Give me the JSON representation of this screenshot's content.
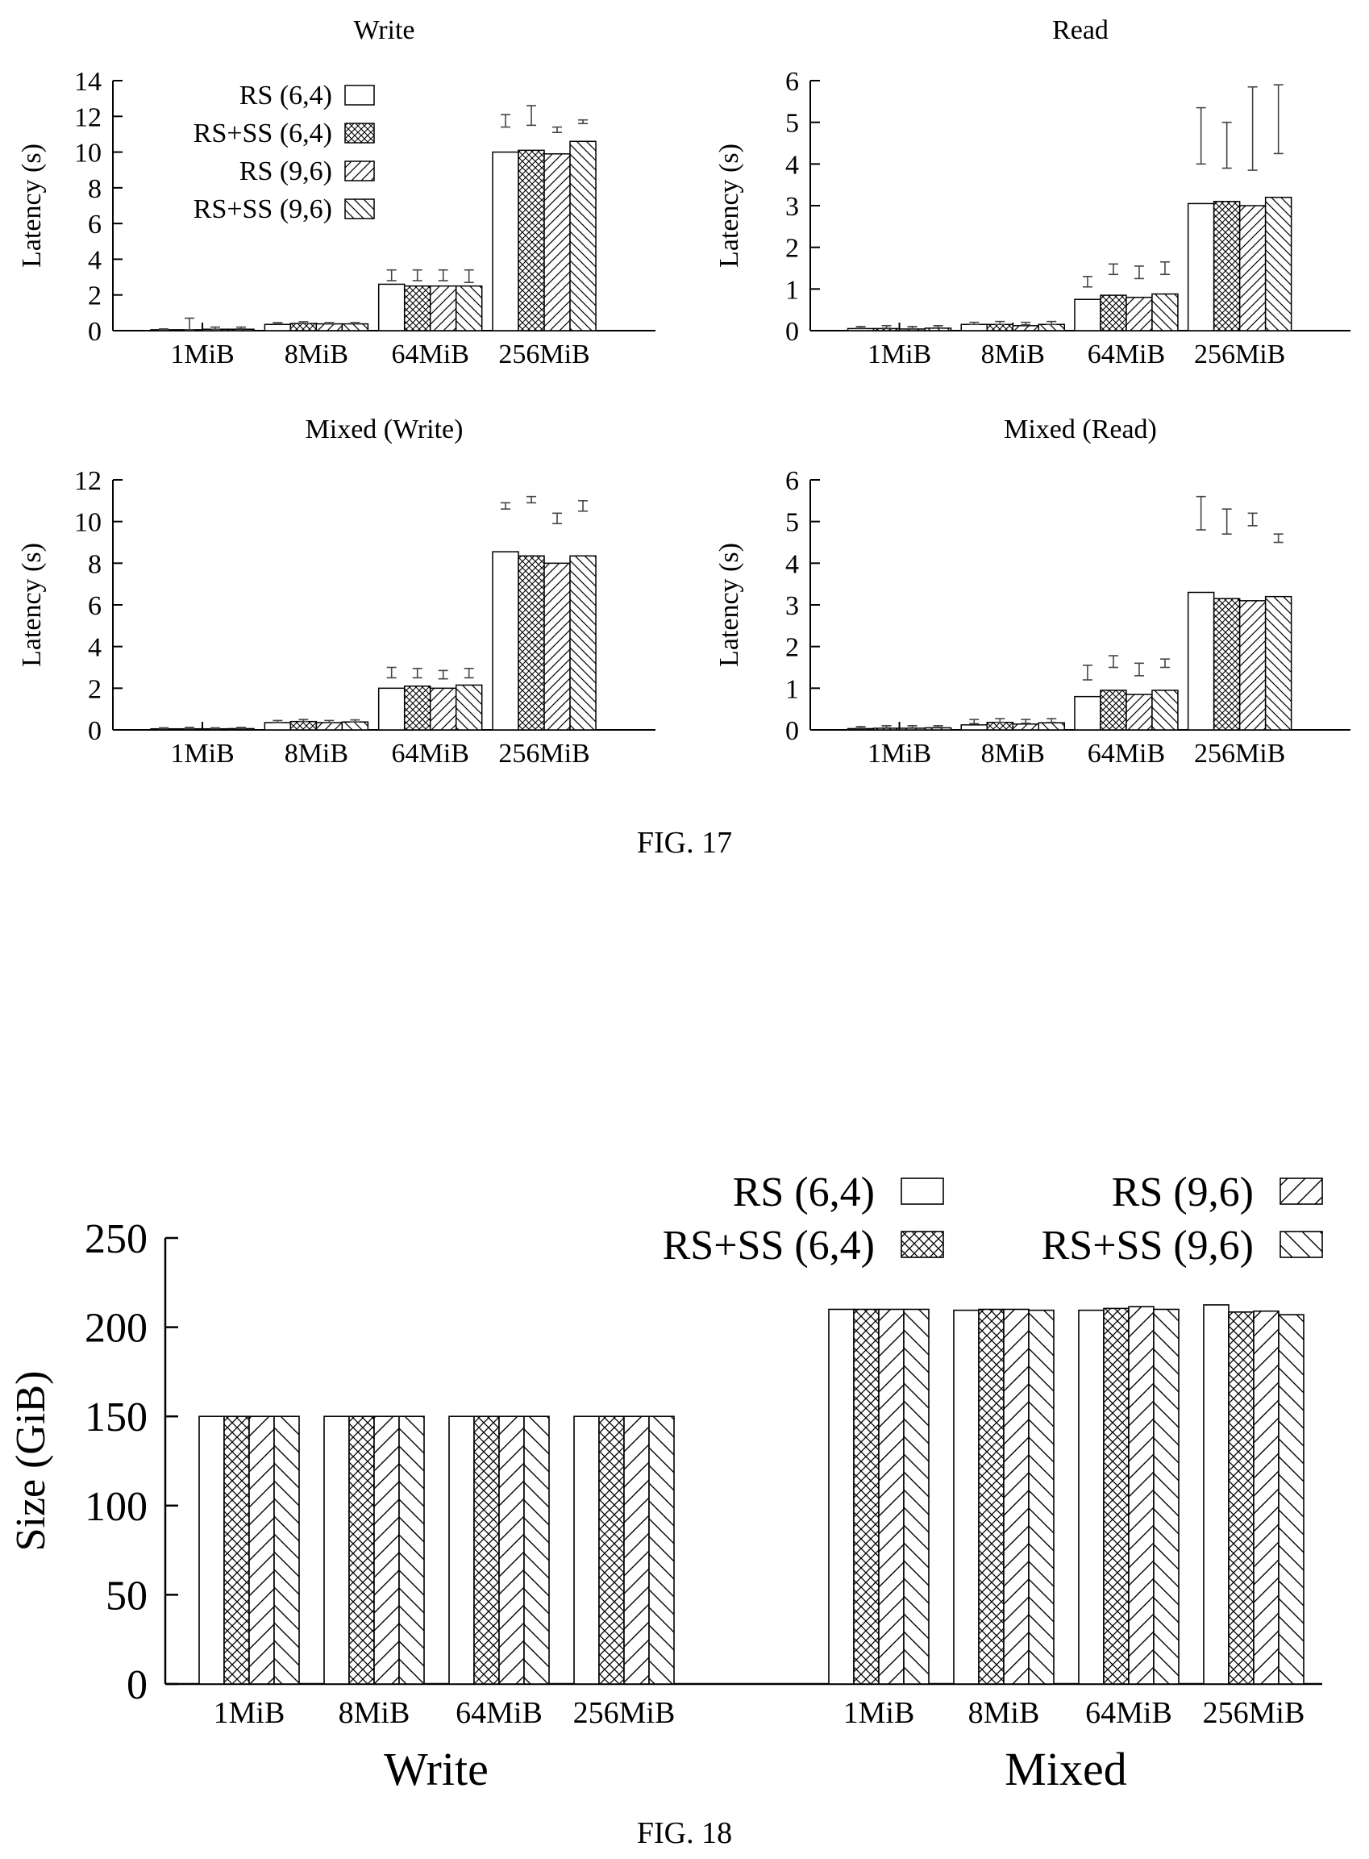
{
  "colors": {
    "ink": "#000000",
    "paper": "#ffffff",
    "errorbar": "#444444"
  },
  "series_names": [
    "RS (6,4)",
    "RS+SS (6,4)",
    "RS (9,6)",
    "RS+SS (9,6)"
  ],
  "series_patterns": [
    "none",
    "crosshatch",
    "diag-forward",
    "diag-back"
  ],
  "fig17": {
    "caption": "FIG. 17",
    "ylabel": "Latency (s)"
  },
  "fig18": {
    "caption": "FIG. 18",
    "ylabel": "Size (GiB)",
    "group_labels": [
      "Write",
      "Mixed"
    ]
  },
  "chart_data": [
    {
      "type": "bar",
      "title": "Write",
      "xlabel": "",
      "ylabel": "Latency (s)",
      "categories": [
        "1MiB",
        "8MiB",
        "64MiB",
        "256MiB"
      ],
      "ylim": [
        0,
        14
      ],
      "yticks": [
        0,
        2,
        4,
        6,
        8,
        10,
        12,
        14
      ],
      "legend": "top-left",
      "series": [
        {
          "name": "RS (6,4)",
          "values": [
            0.05,
            0.35,
            2.6,
            10.0
          ],
          "err": [
            [
              0.05,
              0.1
            ],
            [
              0.38,
              0.45
            ],
            [
              2.8,
              3.4
            ],
            [
              11.4,
              12.1
            ]
          ]
        },
        {
          "name": "RS+SS (6,4)",
          "values": [
            0.05,
            0.4,
            2.5,
            10.1
          ],
          "err": [
            [
              0.05,
              0.7
            ],
            [
              0.4,
              0.5
            ],
            [
              2.8,
              3.4
            ],
            [
              11.5,
              12.6
            ]
          ]
        },
        {
          "name": "RS (9,6)",
          "values": [
            0.08,
            0.38,
            2.5,
            9.9
          ],
          "err": [
            [
              0.08,
              0.2
            ],
            [
              0.38,
              0.45
            ],
            [
              2.8,
              3.4
            ],
            [
              11.1,
              11.4
            ]
          ]
        },
        {
          "name": "RS+SS (9,6)",
          "values": [
            0.08,
            0.38,
            2.5,
            10.6
          ],
          "err": [
            [
              0.1,
              0.2
            ],
            [
              0.4,
              0.45
            ],
            [
              2.7,
              3.4
            ],
            [
              11.6,
              11.8
            ]
          ]
        }
      ]
    },
    {
      "type": "bar",
      "title": "Read",
      "xlabel": "",
      "ylabel": "Latency (s)",
      "categories": [
        "1MiB",
        "8MiB",
        "64MiB",
        "256MiB"
      ],
      "ylim": [
        0,
        6
      ],
      "yticks": [
        0,
        1,
        2,
        3,
        4,
        5,
        6
      ],
      "series": [
        {
          "name": "RS (6,4)",
          "values": [
            0.05,
            0.15,
            0.75,
            3.05
          ],
          "err": [
            [
              0.06,
              0.1
            ],
            [
              0.15,
              0.2
            ],
            [
              1.05,
              1.3
            ],
            [
              4.0,
              5.35
            ]
          ]
        },
        {
          "name": "RS+SS (6,4)",
          "values": [
            0.05,
            0.15,
            0.85,
            3.1
          ],
          "err": [
            [
              0.06,
              0.12
            ],
            [
              0.15,
              0.22
            ],
            [
              1.35,
              1.6
            ],
            [
              3.9,
              5.0
            ]
          ]
        },
        {
          "name": "RS (9,6)",
          "values": [
            0.04,
            0.12,
            0.8,
            3.0
          ],
          "err": [
            [
              0.05,
              0.1
            ],
            [
              0.14,
              0.2
            ],
            [
              1.25,
              1.55
            ],
            [
              3.85,
              5.85
            ]
          ]
        },
        {
          "name": "RS+SS (9,6)",
          "values": [
            0.06,
            0.15,
            0.88,
            3.2
          ],
          "err": [
            [
              0.07,
              0.12
            ],
            [
              0.15,
              0.22
            ],
            [
              1.35,
              1.65
            ],
            [
              4.25,
              5.9
            ]
          ]
        }
      ]
    },
    {
      "type": "bar",
      "title": "Mixed (Write)",
      "xlabel": "",
      "ylabel": "Latency (s)",
      "categories": [
        "1MiB",
        "8MiB",
        "64MiB",
        "256MiB"
      ],
      "ylim": [
        0,
        12
      ],
      "yticks": [
        0,
        2,
        4,
        6,
        8,
        10,
        12
      ],
      "series": [
        {
          "name": "RS (6,4)",
          "values": [
            0.05,
            0.35,
            2.0,
            8.55
          ],
          "err": [
            [
              0.06,
              0.1
            ],
            [
              0.36,
              0.45
            ],
            [
              2.5,
              3.0
            ],
            [
              10.6,
              10.9
            ]
          ]
        },
        {
          "name": "RS+SS (6,4)",
          "values": [
            0.05,
            0.4,
            2.1,
            8.35
          ],
          "err": [
            [
              0.06,
              0.12
            ],
            [
              0.4,
              0.5
            ],
            [
              2.5,
              2.95
            ],
            [
              10.9,
              11.2
            ]
          ]
        },
        {
          "name": "RS (9,6)",
          "values": [
            0.05,
            0.35,
            2.0,
            8.0
          ],
          "err": [
            [
              0.06,
              0.1
            ],
            [
              0.35,
              0.45
            ],
            [
              2.45,
              2.85
            ],
            [
              9.9,
              10.4
            ]
          ]
        },
        {
          "name": "RS+SS (9,6)",
          "values": [
            0.06,
            0.38,
            2.15,
            8.35
          ],
          "err": [
            [
              0.07,
              0.12
            ],
            [
              0.38,
              0.48
            ],
            [
              2.5,
              2.95
            ],
            [
              10.5,
              11.0
            ]
          ]
        }
      ]
    },
    {
      "type": "bar",
      "title": "Mixed (Read)",
      "xlabel": "",
      "ylabel": "Latency (s)",
      "categories": [
        "1MiB",
        "8MiB",
        "64MiB",
        "256MiB"
      ],
      "ylim": [
        0,
        6
      ],
      "yticks": [
        0,
        1,
        2,
        3,
        4,
        5,
        6
      ],
      "series": [
        {
          "name": "RS (6,4)",
          "values": [
            0.03,
            0.12,
            0.8,
            3.3
          ],
          "err": [
            [
              0.04,
              0.08
            ],
            [
              0.15,
              0.25
            ],
            [
              1.2,
              1.55
            ],
            [
              4.8,
              5.6
            ]
          ]
        },
        {
          "name": "RS+SS (6,4)",
          "values": [
            0.04,
            0.18,
            0.95,
            3.15
          ],
          "err": [
            [
              0.05,
              0.1
            ],
            [
              0.18,
              0.27
            ],
            [
              1.5,
              1.78
            ],
            [
              4.7,
              5.3
            ]
          ]
        },
        {
          "name": "RS (9,6)",
          "values": [
            0.04,
            0.14,
            0.85,
            3.1
          ],
          "err": [
            [
              0.05,
              0.1
            ],
            [
              0.16,
              0.25
            ],
            [
              1.3,
              1.6
            ],
            [
              4.9,
              5.2
            ]
          ]
        },
        {
          "name": "RS+SS (9,6)",
          "values": [
            0.05,
            0.17,
            0.95,
            3.2
          ],
          "err": [
            [
              0.06,
              0.1
            ],
            [
              0.18,
              0.27
            ],
            [
              1.5,
              1.7
            ],
            [
              4.5,
              4.7
            ]
          ]
        }
      ]
    },
    {
      "type": "bar",
      "title": "",
      "xlabel": "",
      "ylabel": "Size (GiB)",
      "groups": [
        {
          "label": "Write",
          "categories": [
            "1MiB",
            "8MiB",
            "64MiB",
            "256MiB"
          ]
        },
        {
          "label": "Mixed",
          "categories": [
            "1MiB",
            "8MiB",
            "64MiB",
            "256MiB"
          ]
        }
      ],
      "categories": [
        "1MiB",
        "8MiB",
        "64MiB",
        "256MiB",
        "1MiB",
        "8MiB",
        "64MiB",
        "256MiB"
      ],
      "ylim": [
        0,
        250
      ],
      "yticks": [
        0,
        50,
        100,
        150,
        200,
        250
      ],
      "legend": "top-right",
      "series": [
        {
          "name": "RS (6,4)",
          "values": [
            150,
            150,
            150,
            150,
            210,
            209.5,
            209.5,
            212.5
          ]
        },
        {
          "name": "RS+SS (6,4)",
          "values": [
            150,
            150,
            150,
            150,
            210,
            210,
            210.5,
            208.5
          ]
        },
        {
          "name": "RS (9,6)",
          "values": [
            150,
            150,
            150,
            150,
            210,
            210,
            211.5,
            209
          ]
        },
        {
          "name": "RS+SS (9,6)",
          "values": [
            150,
            150,
            150,
            150,
            210,
            209.5,
            210,
            207
          ]
        }
      ]
    }
  ]
}
